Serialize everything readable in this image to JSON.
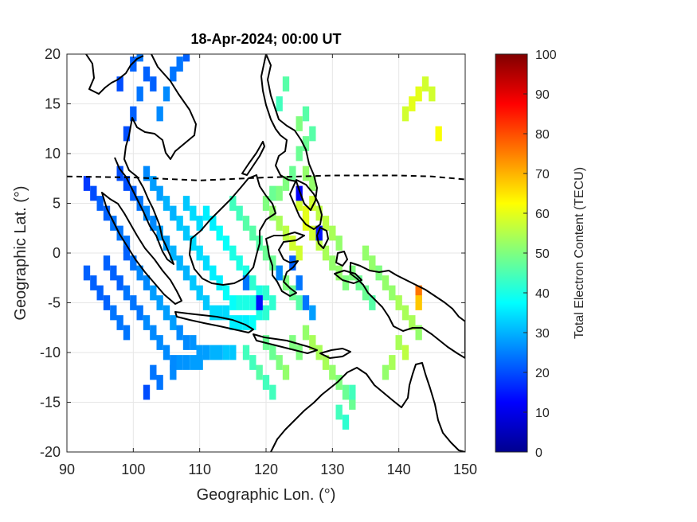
{
  "chart_data": {
    "type": "heatmap",
    "title": "18-Apr-2024; 00:00 UT",
    "xlabel": "Geographic Lon. (°)",
    "ylabel": "Geographic Lat. (°)",
    "xlim": [
      90,
      150
    ],
    "ylim": [
      -20,
      20
    ],
    "xticks": [
      90,
      100,
      110,
      120,
      130,
      140,
      150
    ],
    "yticks": [
      -20,
      -15,
      -10,
      -5,
      0,
      5,
      10,
      15,
      20
    ],
    "grid": true,
    "colorbar": {
      "label": "Total Electron Content (TECU)",
      "range": [
        0,
        100
      ],
      "ticks": [
        0,
        10,
        20,
        30,
        40,
        50,
        60,
        70,
        80,
        90,
        100
      ],
      "colormap": "jet",
      "position": "right"
    },
    "dip_equator": [
      [
        90,
        7.7
      ],
      [
        100,
        7.6
      ],
      [
        110,
        7.3
      ],
      [
        120,
        7.6
      ],
      [
        130,
        7.8
      ],
      [
        140,
        7.8
      ],
      [
        145,
        7.7
      ],
      [
        150,
        7.4
      ]
    ],
    "tec_cells_lonlat_value": [
      [
        93,
        7,
        18
      ],
      [
        94,
        6,
        20
      ],
      [
        95,
        5,
        22
      ],
      [
        96,
        4,
        22
      ],
      [
        97,
        3,
        24
      ],
      [
        98,
        2,
        24
      ],
      [
        99,
        1,
        24
      ],
      [
        99,
        0,
        22
      ],
      [
        100,
        -1,
        24
      ],
      [
        101,
        -2,
        26
      ],
      [
        102,
        -3,
        26
      ],
      [
        103,
        -4,
        28
      ],
      [
        104,
        -5,
        28
      ],
      [
        105,
        -6,
        28
      ],
      [
        106,
        -7,
        28
      ],
      [
        107,
        -8,
        26
      ],
      [
        108,
        -9,
        26
      ],
      [
        109,
        -9,
        27
      ],
      [
        110,
        -10,
        28
      ],
      [
        111,
        -10,
        28
      ],
      [
        112,
        -10,
        30
      ],
      [
        113,
        -10,
        30
      ],
      [
        114,
        -10,
        32
      ],
      [
        115,
        -10,
        32
      ],
      [
        96,
        -1,
        22
      ],
      [
        97,
        -2,
        22
      ],
      [
        98,
        -3,
        22
      ],
      [
        99,
        -4,
        24
      ],
      [
        100,
        -5,
        24
      ],
      [
        101,
        -6,
        24
      ],
      [
        102,
        -7,
        26
      ],
      [
        103,
        -8,
        26
      ],
      [
        104,
        -9,
        26
      ],
      [
        105,
        -10,
        26
      ],
      [
        106,
        -11,
        26
      ],
      [
        107,
        -11,
        27
      ],
      [
        108,
        -11,
        27
      ],
      [
        109,
        -11,
        28
      ],
      [
        110,
        -11,
        28
      ],
      [
        98,
        8,
        20
      ],
      [
        99,
        7,
        20
      ],
      [
        100,
        6,
        22
      ],
      [
        101,
        5,
        24
      ],
      [
        102,
        4,
        26
      ],
      [
        103,
        3,
        26
      ],
      [
        104,
        2,
        28
      ],
      [
        105,
        1,
        28
      ],
      [
        106,
        0,
        30
      ],
      [
        107,
        -1,
        30
      ],
      [
        108,
        -2,
        30
      ],
      [
        109,
        -3,
        32
      ],
      [
        110,
        -4,
        32
      ],
      [
        111,
        -5,
        32
      ],
      [
        112,
        -6,
        34
      ],
      [
        113,
        -6,
        34
      ],
      [
        114,
        -6,
        34
      ],
      [
        115,
        -7,
        36
      ],
      [
        116,
        -7,
        36
      ],
      [
        117,
        -7,
        36
      ],
      [
        118,
        -7,
        38
      ],
      [
        102,
        8,
        26
      ],
      [
        103,
        7,
        28
      ],
      [
        104,
        6,
        28
      ],
      [
        105,
        5,
        30
      ],
      [
        106,
        4,
        30
      ],
      [
        107,
        3,
        32
      ],
      [
        108,
        2,
        32
      ],
      [
        109,
        1,
        34
      ],
      [
        110,
        0,
        34
      ],
      [
        111,
        -1,
        34
      ],
      [
        112,
        -2,
        36
      ],
      [
        113,
        -3,
        36
      ],
      [
        114,
        -4,
        38
      ],
      [
        115,
        -5,
        38
      ],
      [
        116,
        -5,
        40
      ],
      [
        117,
        -5,
        40
      ],
      [
        118,
        -5,
        40
      ],
      [
        119,
        -6,
        40
      ],
      [
        120,
        -6,
        42
      ],
      [
        108,
        5,
        32
      ],
      [
        109,
        4,
        34
      ],
      [
        110,
        3,
        34
      ],
      [
        111,
        4,
        36
      ],
      [
        112,
        3,
        36
      ],
      [
        113,
        2,
        38
      ],
      [
        114,
        1,
        38
      ],
      [
        115,
        0,
        40
      ],
      [
        116,
        -1,
        40
      ],
      [
        117,
        -2,
        40
      ],
      [
        118,
        -3,
        42
      ],
      [
        119,
        -4,
        40
      ],
      [
        120,
        -4,
        42
      ],
      [
        121,
        -5,
        42
      ],
      [
        115,
        5,
        44
      ],
      [
        116,
        4,
        44
      ],
      [
        117,
        3,
        46
      ],
      [
        118,
        2,
        46
      ],
      [
        119,
        1,
        46
      ],
      [
        120,
        0,
        48
      ],
      [
        121,
        -1,
        48
      ],
      [
        122,
        -2,
        50
      ],
      [
        123,
        -3,
        50
      ],
      [
        124,
        -4,
        48
      ],
      [
        125,
        -5,
        46
      ],
      [
        120,
        5,
        50
      ],
      [
        121,
        4,
        52
      ],
      [
        122,
        3,
        54
      ],
      [
        123,
        2,
        56
      ],
      [
        124,
        1,
        58
      ],
      [
        125,
        0,
        58
      ],
      [
        126,
        3,
        60
      ],
      [
        127,
        2,
        58
      ],
      [
        128,
        1,
        56
      ],
      [
        129,
        0,
        54
      ],
      [
        130,
        -1,
        52
      ],
      [
        131,
        -2,
        52
      ],
      [
        132,
        -3,
        50
      ],
      [
        125,
        5,
        58
      ],
      [
        126,
        4,
        60
      ],
      [
        127,
        5,
        58
      ],
      [
        128,
        4,
        56
      ],
      [
        129,
        3,
        56
      ],
      [
        130,
        2,
        54
      ],
      [
        131,
        1,
        52
      ],
      [
        133,
        -2,
        50
      ],
      [
        134,
        -3,
        48
      ],
      [
        135,
        -4,
        48
      ],
      [
        136,
        -5,
        46
      ],
      [
        135,
        0,
        52
      ],
      [
        136,
        -1,
        52
      ],
      [
        137,
        -2,
        50
      ],
      [
        138,
        -3,
        52
      ],
      [
        139,
        -4,
        52
      ],
      [
        140,
        -5,
        54
      ],
      [
        141,
        -6,
        54
      ],
      [
        142,
        -7,
        54
      ],
      [
        143,
        -8,
        52
      ],
      [
        140,
        -9,
        54
      ],
      [
        141,
        -10,
        56
      ],
      [
        139,
        -11,
        54
      ],
      [
        138,
        -12,
        52
      ],
      [
        120,
        -9,
        48
      ],
      [
        121,
        -10,
        48
      ],
      [
        122,
        -11,
        50
      ],
      [
        123,
        -12,
        52
      ],
      [
        124,
        -9,
        50
      ],
      [
        125,
        -10,
        50
      ],
      [
        126,
        -8,
        52
      ],
      [
        127,
        -9,
        54
      ],
      [
        128,
        -10,
        54
      ],
      [
        129,
        -11,
        54
      ],
      [
        130,
        -12,
        52
      ],
      [
        131,
        -13,
        50
      ],
      [
        132,
        -14,
        48
      ],
      [
        133,
        -15,
        48
      ],
      [
        117,
        -10,
        44
      ],
      [
        118,
        -11,
        44
      ],
      [
        119,
        -12,
        46
      ],
      [
        120,
        -13,
        44
      ],
      [
        121,
        -14,
        44
      ],
      [
        124,
        -1,
        22
      ],
      [
        125,
        -3,
        24
      ],
      [
        122,
        -2,
        26
      ],
      [
        126,
        -5,
        24
      ],
      [
        127,
        -6,
        28
      ],
      [
        119,
        -5,
        14
      ],
      [
        125,
        6,
        12
      ],
      [
        128,
        2,
        14
      ],
      [
        117,
        -3,
        24
      ],
      [
        125,
        10,
        48
      ],
      [
        126,
        11,
        48
      ],
      [
        127,
        12,
        46
      ],
      [
        125,
        13,
        50
      ],
      [
        126,
        8,
        52
      ],
      [
        127,
        7,
        52
      ],
      [
        126,
        14,
        46
      ],
      [
        122,
        15,
        44
      ],
      [
        123,
        17,
        46
      ],
      [
        121,
        6,
        48
      ],
      [
        122,
        6,
        50
      ],
      [
        123,
        7,
        50
      ],
      [
        124,
        8,
        48
      ],
      [
        143,
        -4,
        76
      ],
      [
        143,
        -5,
        68
      ],
      [
        141,
        14,
        58
      ],
      [
        142,
        15,
        60
      ],
      [
        143,
        16,
        60
      ],
      [
        144,
        17,
        58
      ],
      [
        145,
        16,
        58
      ],
      [
        146,
        12,
        62
      ],
      [
        131,
        -16,
        44
      ],
      [
        132,
        -17,
        42
      ],
      [
        133,
        -14,
        44
      ],
      [
        93,
        -2,
        22
      ],
      [
        94,
        -3,
        22
      ],
      [
        95,
        -4,
        22
      ],
      [
        96,
        -5,
        22
      ],
      [
        97,
        -6,
        24
      ],
      [
        98,
        -7,
        24
      ],
      [
        99,
        -8,
        24
      ],
      [
        103,
        -12,
        24
      ],
      [
        104,
        -13,
        24
      ],
      [
        102,
        -14,
        20
      ],
      [
        106,
        -12,
        26
      ],
      [
        99,
        12,
        20
      ],
      [
        100,
        14,
        22
      ],
      [
        101,
        16,
        24
      ],
      [
        102,
        18,
        22
      ],
      [
        103,
        17,
        22
      ],
      [
        104,
        14,
        26
      ],
      [
        105,
        16,
        26
      ],
      [
        106,
        18,
        24
      ],
      [
        107,
        19,
        24
      ],
      [
        108,
        20,
        22
      ],
      [
        98,
        17,
        20
      ],
      [
        100,
        19,
        22
      ],
      [
        101,
        20,
        24
      ]
    ]
  }
}
